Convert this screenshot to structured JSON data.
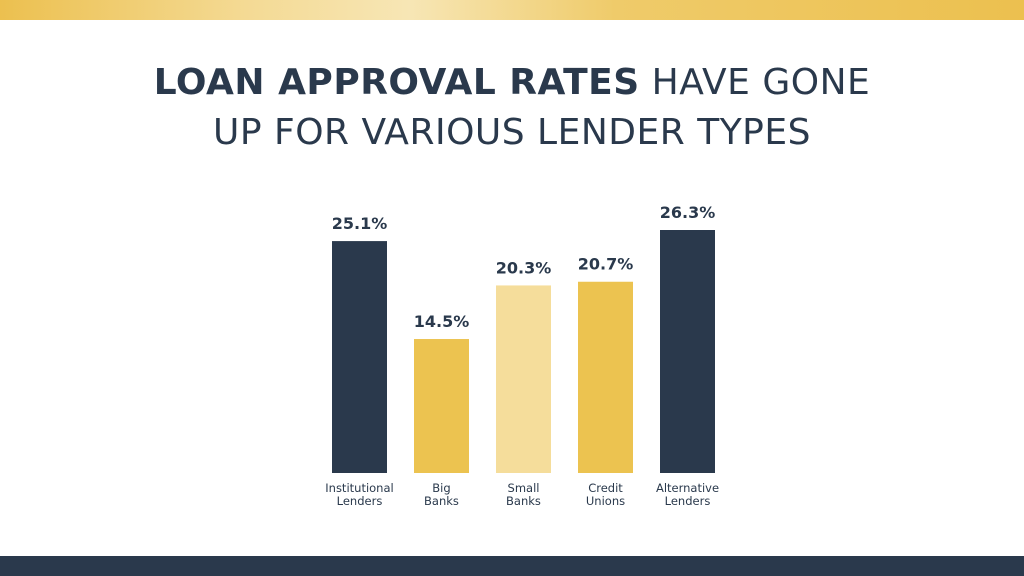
{
  "title": {
    "bold": "LOAN APPROVAL RATES",
    "rest": "HAVE GONE",
    "line2": "UP FOR VARIOUS LENDER TYPES"
  },
  "chart_data": {
    "type": "bar",
    "categories": [
      [
        "Institutional",
        "Lenders"
      ],
      [
        "Big",
        "Banks"
      ],
      [
        "Small",
        "Banks"
      ],
      [
        "Credit",
        "Unions"
      ],
      [
        "Alternative",
        "Lenders"
      ]
    ],
    "values": [
      25.1,
      14.5,
      20.3,
      20.7,
      26.3
    ],
    "value_labels": [
      "25.1%",
      "14.5%",
      "20.3%",
      "20.7%",
      "26.3%"
    ],
    "bar_colors": [
      "#2a394c",
      "#ecc350",
      "#f5dd9b",
      "#ecc350",
      "#2a394c"
    ],
    "ylim": [
      0,
      26.3
    ],
    "grid": false,
    "legend": "none",
    "title": "LOAN APPROVAL RATES HAVE GONE UP FOR VARIOUS LENDER TYPES",
    "xlabel": "",
    "ylabel": ""
  },
  "colors": {
    "navy": "#2a394c",
    "gold": "#ecc350",
    "light_gold": "#f5dd9b"
  }
}
